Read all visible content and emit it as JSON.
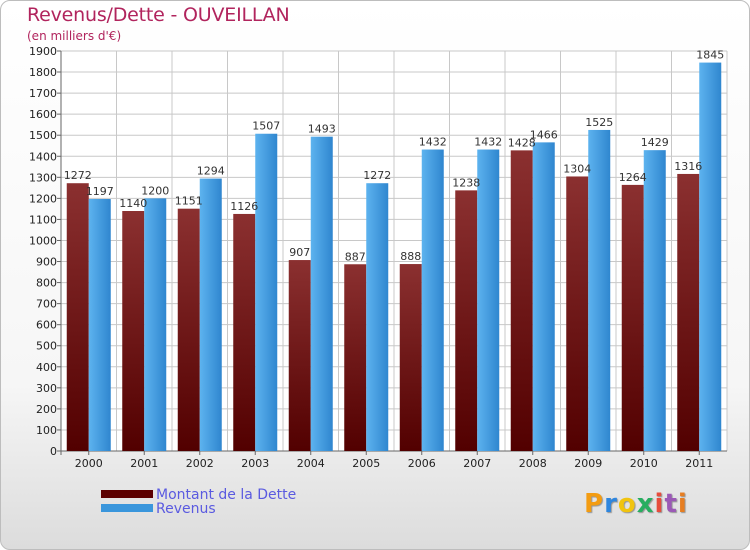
{
  "title": "Revenus/Dette - OUVEILLAN",
  "subtitle": "(en milliers d'€)",
  "colors": {
    "dette": "#7a2626",
    "revenus": "#4aa3e4",
    "title": "#b1245d",
    "legend_text": "#5a5ae0"
  },
  "legend": [
    {
      "label": "Montant de la Dette",
      "color": "#5c0000"
    },
    {
      "label": "Revenus",
      "color": "#3a96dc"
    }
  ],
  "logo": {
    "text": "Proxiti",
    "letters": [
      {
        "ch": "P",
        "color": "#f39c12"
      },
      {
        "ch": "r",
        "color": "#2e86de"
      },
      {
        "ch": "o",
        "color": "#f1c40f"
      },
      {
        "ch": "x",
        "color": "#27ae60"
      },
      {
        "ch": "i",
        "color": "#e74c3c"
      },
      {
        "ch": "t",
        "color": "#9b59b6"
      },
      {
        "ch": "i",
        "color": "#e67e22"
      }
    ]
  },
  "chart_data": {
    "type": "bar",
    "title": "Revenus/Dette - OUVEILLAN",
    "subtitle": "(en milliers d'€)",
    "categories": [
      "2000",
      "2001",
      "2002",
      "2003",
      "2004",
      "2005",
      "2006",
      "2007",
      "2008",
      "2009",
      "2010",
      "2011"
    ],
    "series": [
      {
        "name": "Montant de la Dette",
        "values": [
          1272,
          1140,
          1151,
          1126,
          907,
          887,
          888,
          1238,
          1428,
          1304,
          1264,
          1316
        ]
      },
      {
        "name": "Revenus",
        "values": [
          1197,
          1200,
          1294,
          1507,
          1493,
          1272,
          1432,
          1432,
          1466,
          1525,
          1429,
          1845
        ]
      }
    ],
    "ylim": [
      0,
      1900
    ],
    "yticks": [
      0,
      100,
      200,
      300,
      400,
      500,
      600,
      700,
      800,
      900,
      1000,
      1100,
      1200,
      1300,
      1400,
      1500,
      1600,
      1700,
      1800,
      1900
    ],
    "grid": true,
    "legend_position": "bottom-left"
  }
}
